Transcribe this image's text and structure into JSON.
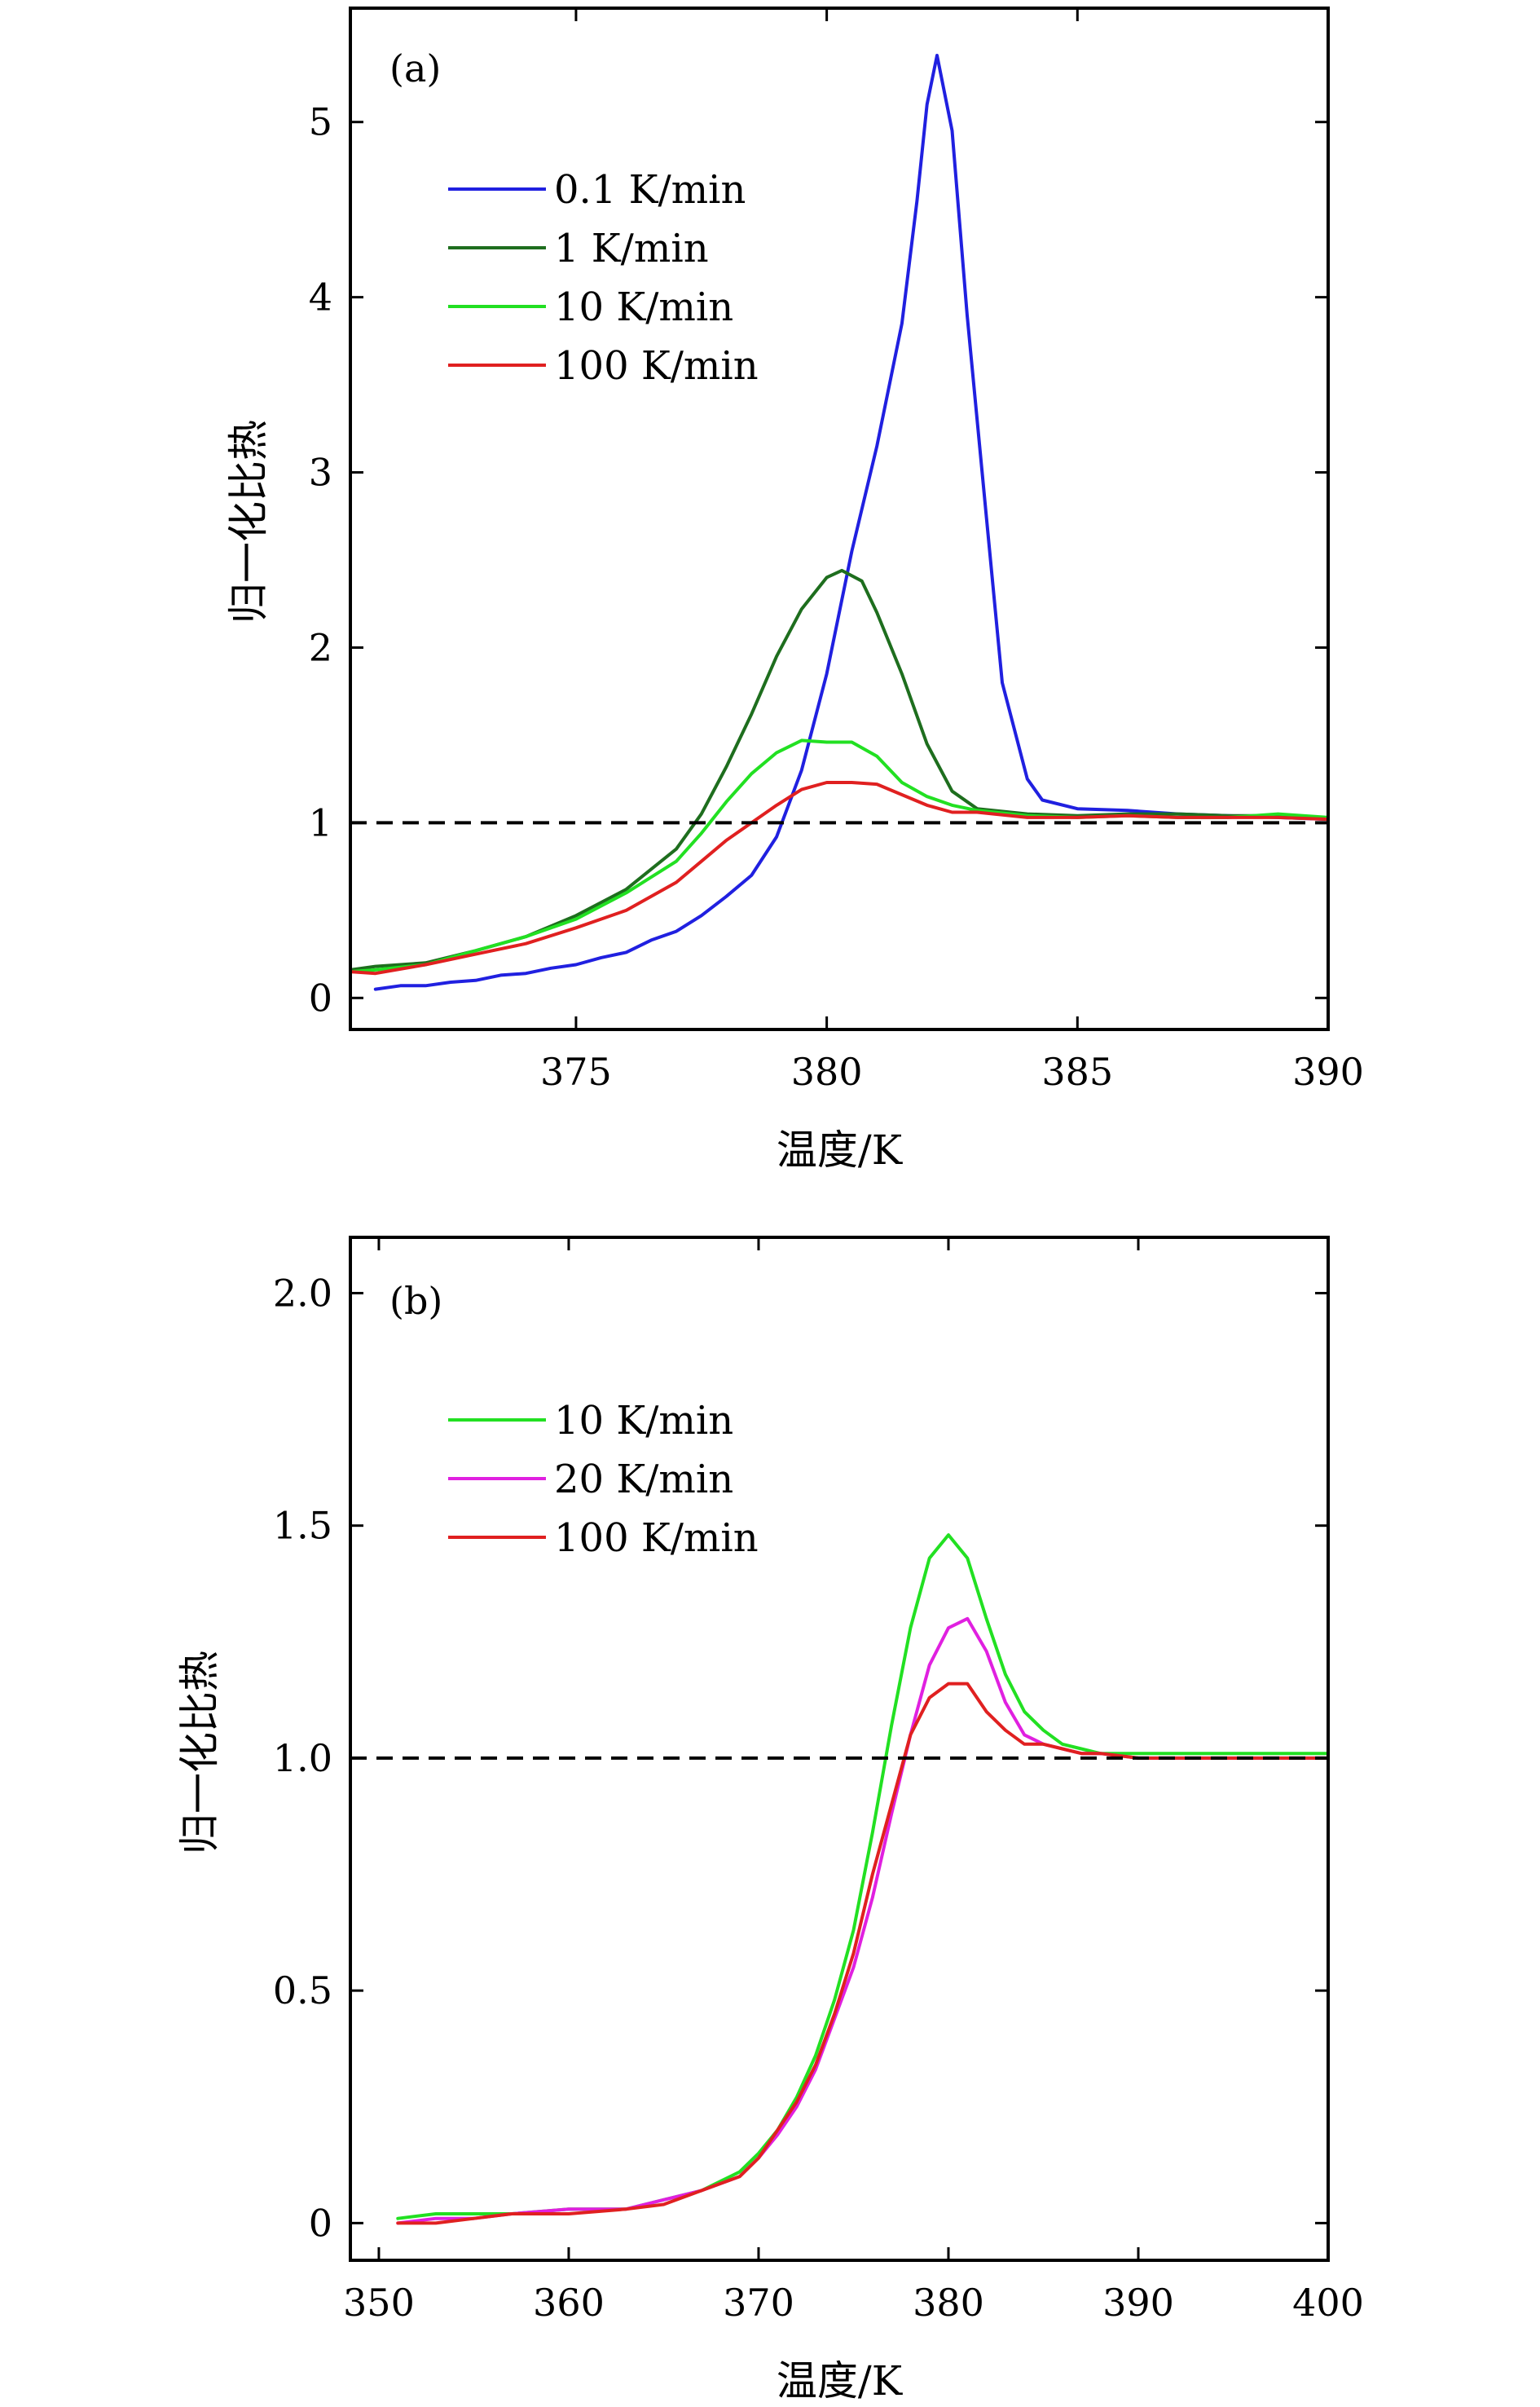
{
  "chart_data": [
    {
      "type": "line",
      "panel_label": "(a)",
      "xlabel": "温度/K",
      "ylabel": "归一化比热",
      "xlim": [
        370.5,
        390
      ],
      "ylim": [
        -0.18,
        5.65
      ],
      "xticks": [
        375,
        380,
        385,
        390
      ],
      "yticks": [
        0,
        1,
        2,
        3,
        4,
        5
      ],
      "xtick_labels": [
        "375",
        "380",
        "385",
        "390"
      ],
      "ytick_labels": [
        "0",
        "1",
        "2",
        "3",
        "4",
        "5"
      ],
      "reference_line": {
        "y": 1,
        "style": "dashed",
        "color": "#000000"
      },
      "legend_position": "top-left",
      "series": [
        {
          "name": "0.1 K/min",
          "color": "#2020e0",
          "x": [
            371,
            371.5,
            372,
            372.5,
            373,
            373.5,
            374,
            374.5,
            375,
            375.5,
            376,
            376.5,
            377,
            377.5,
            378,
            378.5,
            379,
            379.5,
            380,
            380.5,
            381,
            381.5,
            381.8,
            382,
            382.2,
            382.5,
            382.8,
            383.2,
            383.5,
            384,
            384.3,
            385,
            386,
            387,
            388,
            389,
            390
          ],
          "y": [
            0.05,
            0.07,
            0.07,
            0.09,
            0.1,
            0.13,
            0.14,
            0.17,
            0.19,
            0.23,
            0.26,
            0.33,
            0.38,
            0.47,
            0.58,
            0.7,
            0.92,
            1.3,
            1.85,
            2.55,
            3.15,
            3.85,
            4.55,
            5.1,
            5.38,
            4.95,
            3.9,
            2.7,
            1.8,
            1.25,
            1.13,
            1.08,
            1.07,
            1.05,
            1.04,
            1.03,
            1.02
          ]
        },
        {
          "name": "1 K/min",
          "color": "#1e6e1e",
          "x": [
            370.5,
            371,
            372,
            373,
            374,
            375,
            376,
            377,
            377.5,
            378,
            378.5,
            379,
            379.5,
            380,
            380.3,
            380.7,
            381,
            381.5,
            382,
            382.5,
            383,
            384,
            385,
            386,
            387,
            388,
            389,
            390
          ],
          "y": [
            0.16,
            0.18,
            0.2,
            0.27,
            0.35,
            0.47,
            0.62,
            0.85,
            1.05,
            1.32,
            1.62,
            1.95,
            2.22,
            2.4,
            2.44,
            2.38,
            2.2,
            1.85,
            1.45,
            1.18,
            1.08,
            1.05,
            1.04,
            1.05,
            1.05,
            1.04,
            1.04,
            1.02
          ]
        },
        {
          "name": "10 K/min",
          "color": "#22e022",
          "x": [
            370.5,
            371,
            372,
            373,
            374,
            375,
            376,
            377,
            377.5,
            378,
            378.5,
            379,
            379.5,
            380,
            380.5,
            381,
            381.5,
            382,
            382.5,
            383,
            384,
            385,
            386,
            387,
            388,
            389,
            390
          ],
          "y": [
            0.15,
            0.16,
            0.19,
            0.27,
            0.35,
            0.45,
            0.6,
            0.78,
            0.94,
            1.12,
            1.28,
            1.4,
            1.47,
            1.46,
            1.46,
            1.38,
            1.23,
            1.15,
            1.1,
            1.07,
            1.04,
            1.03,
            1.04,
            1.03,
            1.03,
            1.05,
            1.03
          ]
        },
        {
          "name": "100 K/min",
          "color": "#e02020",
          "x": [
            370.5,
            371,
            372,
            373,
            374,
            375,
            376,
            377,
            377.5,
            378,
            378.5,
            379,
            379.5,
            380,
            380.5,
            381,
            381.5,
            382,
            382.5,
            383,
            384,
            385,
            386,
            387,
            388,
            389,
            390
          ],
          "y": [
            0.15,
            0.14,
            0.19,
            0.25,
            0.31,
            0.4,
            0.5,
            0.66,
            0.78,
            0.9,
            1.0,
            1.1,
            1.19,
            1.23,
            1.23,
            1.22,
            1.16,
            1.1,
            1.06,
            1.06,
            1.03,
            1.03,
            1.04,
            1.03,
            1.03,
            1.03,
            1.02
          ]
        }
      ]
    },
    {
      "type": "line",
      "panel_label": "(b)",
      "xlabel": "温度/K",
      "ylabel": "归一化比热",
      "xlim": [
        348.5,
        400
      ],
      "ylim": [
        -0.08,
        2.12
      ],
      "xticks": [
        350,
        360,
        370,
        380,
        390,
        400
      ],
      "yticks": [
        0,
        0.5,
        1.0,
        1.5,
        2.0
      ],
      "xtick_labels": [
        "350",
        "360",
        "370",
        "380",
        "390",
        "400"
      ],
      "ytick_labels": [
        "0",
        "0.5",
        "1.0",
        "1.5",
        "2.0"
      ],
      "reference_line": {
        "y": 1.0,
        "style": "dashed",
        "color": "#000000"
      },
      "legend_position": "top-left",
      "series": [
        {
          "name": "10 K/min",
          "color": "#22e022",
          "x": [
            351,
            353,
            355,
            357,
            360,
            363,
            365,
            367,
            369,
            370,
            371,
            372,
            373,
            374,
            375,
            376,
            377,
            378,
            379,
            380,
            381,
            382,
            383,
            384,
            385,
            386,
            387,
            388,
            390,
            392,
            394,
            396,
            398,
            400
          ],
          "y": [
            0.01,
            0.02,
            0.02,
            0.02,
            0.03,
            0.03,
            0.05,
            0.07,
            0.11,
            0.15,
            0.2,
            0.27,
            0.36,
            0.48,
            0.63,
            0.84,
            1.07,
            1.28,
            1.43,
            1.48,
            1.43,
            1.3,
            1.18,
            1.1,
            1.06,
            1.03,
            1.02,
            1.01,
            1.01,
            1.01,
            1.01,
            1.01,
            1.01,
            1.01
          ]
        },
        {
          "name": "20 K/min",
          "color": "#e020e0",
          "x": [
            351,
            353,
            355,
            357,
            360,
            363,
            365,
            367,
            369,
            370,
            371,
            372,
            373,
            374,
            375,
            376,
            377,
            378,
            379,
            380,
            381,
            382,
            383,
            384,
            385,
            386,
            387,
            388,
            390,
            392,
            394,
            396,
            398,
            400
          ],
          "y": [
            0.0,
            0.01,
            0.01,
            0.02,
            0.03,
            0.03,
            0.05,
            0.07,
            0.1,
            0.14,
            0.19,
            0.25,
            0.33,
            0.44,
            0.55,
            0.7,
            0.88,
            1.05,
            1.2,
            1.28,
            1.3,
            1.23,
            1.12,
            1.05,
            1.03,
            1.02,
            1.01,
            1.01,
            1.0,
            1.0,
            1.0,
            1.0,
            1.0,
            1.0
          ]
        },
        {
          "name": "100 K/min",
          "color": "#e02020",
          "x": [
            351,
            353,
            355,
            357,
            360,
            363,
            365,
            367,
            369,
            370,
            371,
            372,
            373,
            374,
            375,
            376,
            377,
            378,
            379,
            380,
            381,
            382,
            383,
            384,
            385,
            386,
            387,
            388,
            390,
            392,
            394,
            396,
            398,
            400
          ],
          "y": [
            0.0,
            0.0,
            0.01,
            0.02,
            0.02,
            0.03,
            0.04,
            0.07,
            0.1,
            0.14,
            0.2,
            0.26,
            0.34,
            0.45,
            0.58,
            0.75,
            0.9,
            1.05,
            1.13,
            1.16,
            1.16,
            1.1,
            1.06,
            1.03,
            1.03,
            1.02,
            1.01,
            1.01,
            1.0,
            1.0,
            1.0,
            1.0,
            1.0,
            1.0
          ]
        }
      ]
    }
  ]
}
